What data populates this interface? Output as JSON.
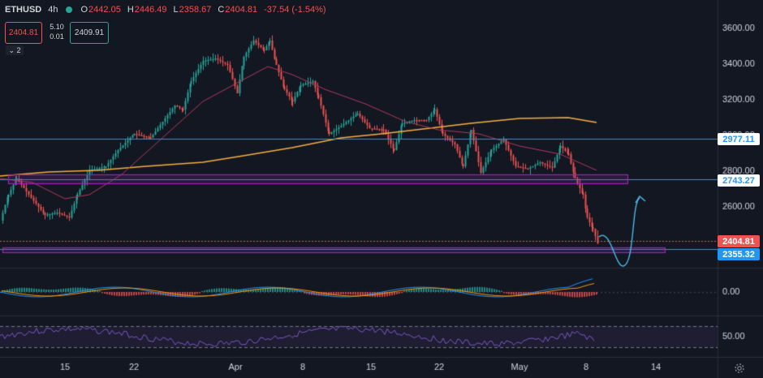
{
  "header": {
    "symbol": "ETHUSD",
    "timeframe": "4h",
    "open_label": "O",
    "open": "2442.05",
    "high_label": "H",
    "high": "2446.49",
    "low_label": "L",
    "low": "2358.67",
    "close_label": "C",
    "close": "2404.81",
    "change": "-37.54 (-1.54%)"
  },
  "trade": {
    "sell": "2404.81",
    "spread_top": "5.10",
    "spread_bottom": "0.01",
    "buy": "2409.91"
  },
  "collapse_label": "2",
  "price_axis": {
    "ticks": [
      "3600.00",
      "3400.00",
      "3200.00",
      "3000.00",
      "2800.00",
      "2600.00"
    ],
    "macd_tick": "0.00",
    "rsi_tick": "50.00"
  },
  "price_labels": [
    {
      "text": "2977.11",
      "color": "#2196f3",
      "bg": "#ffffff"
    },
    {
      "text": "2743.27",
      "color": "#2196f3",
      "bg": "#ffffff"
    },
    {
      "text": "2404.81",
      "color": "#ffffff",
      "bg": "#ef5350"
    },
    {
      "text": "2355.32",
      "color": "#ffffff",
      "bg": "#2196f3"
    }
  ],
  "time_axis": [
    "15",
    "22",
    "Apr",
    "8",
    "15",
    "22",
    "May",
    "8",
    "14"
  ],
  "colors": {
    "up": "#26a69a",
    "down": "#ef5350",
    "ma200": "#f5b041",
    "ma50": "#b03a5b",
    "hline": "#2196f3",
    "zone": "#9c27b0",
    "rsi": "#7e57c2",
    "background": "#131722"
  },
  "icons": {
    "settings": "gear-icon",
    "collapse": "chevron-down-icon"
  }
}
